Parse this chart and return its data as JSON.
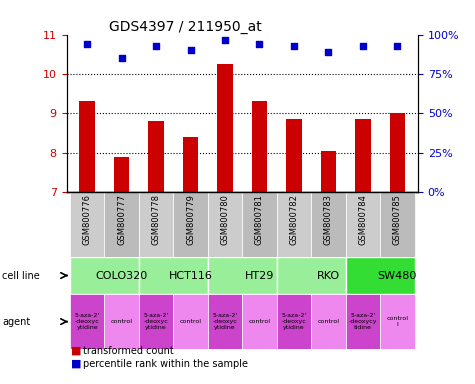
{
  "title": "GDS4397 / 211950_at",
  "samples": [
    "GSM800776",
    "GSM800777",
    "GSM800778",
    "GSM800779",
    "GSM800780",
    "GSM800781",
    "GSM800782",
    "GSM800783",
    "GSM800784",
    "GSM800785"
  ],
  "bar_values": [
    9.3,
    7.9,
    8.8,
    8.4,
    10.25,
    9.3,
    8.85,
    8.05,
    8.85,
    9.0
  ],
  "dot_values": [
    10.75,
    10.4,
    10.7,
    10.6,
    10.85,
    10.75,
    10.7,
    10.55,
    10.7,
    10.7
  ],
  "ylim_left": [
    7,
    11
  ],
  "ylim_right": [
    0,
    100
  ],
  "yticks_left": [
    7,
    8,
    9,
    10,
    11
  ],
  "yticks_right": [
    0,
    25,
    50,
    75,
    100
  ],
  "bar_color": "#cc0000",
  "dot_color": "#0000cc",
  "bar_bottom": 7,
  "cell_lines": [
    {
      "name": "COLO320",
      "start": 0,
      "end": 2,
      "color": "#99ee99"
    },
    {
      "name": "HCT116",
      "start": 2,
      "end": 4,
      "color": "#99ee99"
    },
    {
      "name": "HT29",
      "start": 4,
      "end": 6,
      "color": "#99ee99"
    },
    {
      "name": "RKO",
      "start": 6,
      "end": 8,
      "color": "#99ee99"
    },
    {
      "name": "SW480",
      "start": 8,
      "end": 10,
      "color": "#33dd33"
    }
  ],
  "agents": [
    {
      "name": "5-aza-2'\n-deoxyc\nytidine",
      "color": "#cc44cc"
    },
    {
      "name": "control",
      "color": "#ee88ee"
    },
    {
      "name": "5-aza-2'\n-deoxyc\nytidine",
      "color": "#cc44cc"
    },
    {
      "name": "control",
      "color": "#ee88ee"
    },
    {
      "name": "5-aza-2'\n-deoxyc\nytidine",
      "color": "#cc44cc"
    },
    {
      "name": "control",
      "color": "#ee88ee"
    },
    {
      "name": "5-aza-2'\n-deoxyc\nytidine",
      "color": "#cc44cc"
    },
    {
      "name": "control",
      "color": "#ee88ee"
    },
    {
      "name": "5-aza-2'\n-deoxycy\ntidine",
      "color": "#cc44cc"
    },
    {
      "name": "control\nl",
      "color": "#ee88ee"
    }
  ],
  "gsm_colors": [
    "#cccccc",
    "#bbbbbb",
    "#cccccc",
    "#bbbbbb",
    "#cccccc",
    "#bbbbbb",
    "#cccccc",
    "#bbbbbb",
    "#cccccc",
    "#bbbbbb"
  ],
  "legend_red": "transformed count",
  "legend_blue": "percentile rank within the sample",
  "cell_line_label": "cell line",
  "agent_label": "agent",
  "right_labels": [
    "0%",
    "25%",
    "50%",
    "75%",
    "100%"
  ]
}
